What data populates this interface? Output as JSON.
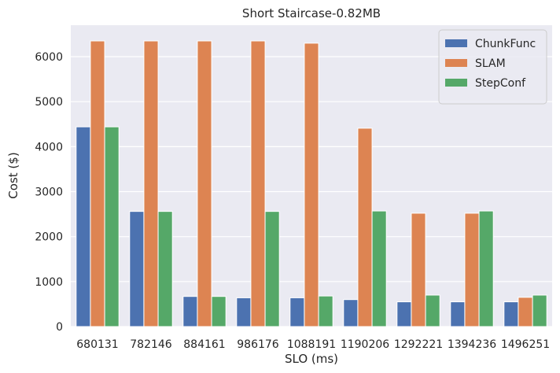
{
  "chart_data": {
    "type": "bar",
    "title": "Short Staircase-0.82MB",
    "xlabel": "SLO (ms)",
    "ylabel": "Cost ($)",
    "ylim": [
      0,
      6700
    ],
    "yticks": [
      0,
      1000,
      2000,
      3000,
      4000,
      5000,
      6000
    ],
    "grid": true,
    "legend_position": "top-right",
    "categories": [
      "680131",
      "782146",
      "884161",
      "986176",
      "1088191",
      "1190206",
      "1292221",
      "1394236",
      "1496251"
    ],
    "series": [
      {
        "name": "ChunkFunc",
        "color": "#4c72b0",
        "values": [
          4440,
          2560,
          670,
          640,
          640,
          600,
          550,
          550,
          550
        ]
      },
      {
        "name": "SLAM",
        "color": "#dd8452",
        "values": [
          6350,
          6350,
          6350,
          6350,
          6300,
          4410,
          2520,
          2520,
          650
        ]
      },
      {
        "name": "StepConf",
        "color": "#55a868",
        "values": [
          4440,
          2560,
          670,
          2560,
          680,
          2570,
          700,
          2570,
          700
        ]
      }
    ]
  }
}
